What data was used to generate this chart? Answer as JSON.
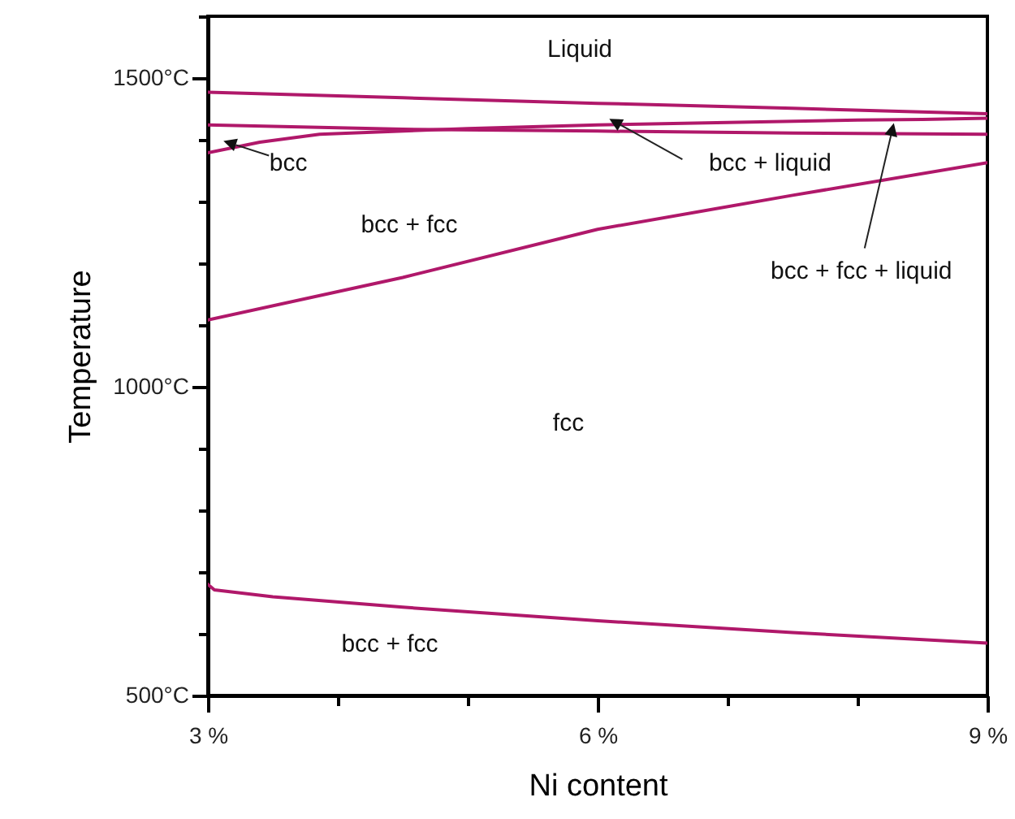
{
  "chart_data": {
    "type": "line",
    "xlabel": "Ni content",
    "ylabel": "Temperature",
    "xlim": [
      3,
      9
    ],
    "ylim": [
      500,
      1600
    ],
    "xticks": [
      {
        "value": 3,
        "label": "3 %"
      },
      {
        "value": 4,
        "label": null
      },
      {
        "value": 5,
        "label": null
      },
      {
        "value": 6,
        "label": "6 %"
      },
      {
        "value": 7,
        "label": null
      },
      {
        "value": 8,
        "label": null
      },
      {
        "value": 9,
        "label": "9 %"
      }
    ],
    "yticks": [
      {
        "value": 500,
        "label": "500°C"
      },
      {
        "value": 600,
        "label": null
      },
      {
        "value": 700,
        "label": null
      },
      {
        "value": 800,
        "label": null
      },
      {
        "value": 900,
        "label": null
      },
      {
        "value": 1000,
        "label": "1000°C"
      },
      {
        "value": 1100,
        "label": null
      },
      {
        "value": 1200,
        "label": null
      },
      {
        "value": 1300,
        "label": null
      },
      {
        "value": 1400,
        "label": null
      },
      {
        "value": 1500,
        "label": "1500°C"
      },
      {
        "value": 1600,
        "label": null
      }
    ],
    "grid": false,
    "marker": "none",
    "line_style": "solid",
    "series": [
      {
        "color": "#b0186a",
        "x": [
          3,
          4.5,
          6,
          7.5,
          9
        ],
        "values": [
          1477,
          1468,
          1459,
          1451,
          1442
        ]
      },
      {
        "color": "#b0186a",
        "x": [
          3,
          4.5,
          6,
          7.5,
          9
        ],
        "values": [
          1424,
          1417,
          1414,
          1411,
          1409
        ]
      },
      {
        "color": "#b0186a",
        "x": [
          3,
          3.4,
          3.86,
          5,
          6,
          7,
          8,
          8.5,
          9
        ],
        "values": [
          1379,
          1396,
          1409,
          1418,
          1424,
          1428,
          1432,
          1433,
          1435
        ]
      },
      {
        "color": "#b0186a",
        "x": [
          3,
          4.5,
          6,
          7.5,
          9
        ],
        "values": [
          1108,
          1177,
          1255,
          1310,
          1363
        ]
      },
      {
        "color": "#b0186a",
        "x": [
          3,
          3.05,
          3.5,
          4.5,
          6,
          7.5,
          9
        ],
        "values": [
          680,
          671,
          660,
          643,
          621,
          602,
          585
        ]
      }
    ],
    "annotations": [
      "Liquid",
      {
        "text": "bcc",
        "x": 3.12,
        "y": 1398
      },
      {
        "text": "bcc + liquid",
        "x": 6.09,
        "y": 1434
      },
      "bcc + fcc",
      {
        "text": "bcc + fcc + liquid",
        "x": 8.28,
        "y": 1427
      },
      "fcc",
      "bcc + fcc"
    ]
  }
}
